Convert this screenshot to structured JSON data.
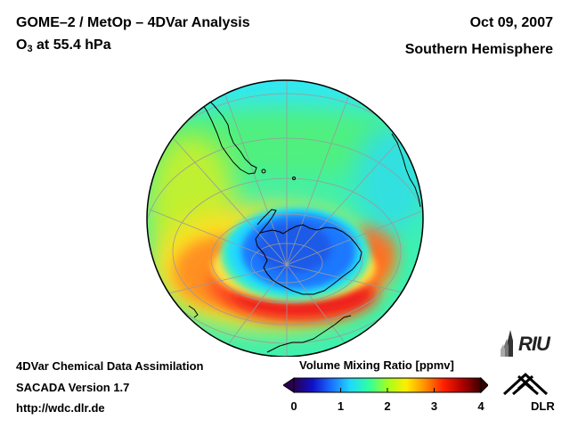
{
  "header": {
    "title": "GOME–2 / MetOp – 4DVar Analysis",
    "species_main": "O",
    "species_sub": "3",
    "species_rest": " at 55.4 hPa",
    "date": "Oct 09, 2007",
    "region": "Southern Hemisphere"
  },
  "footer": {
    "line1": "4DVar Chemical Data Assimilation",
    "line2": "SACADA Version 1.7",
    "line3": "http://wdc.dlr.de"
  },
  "colorbar": {
    "title": "Volume Mixing Ratio [ppmv]",
    "ticks": [
      "0",
      "1",
      "2",
      "3",
      "4"
    ],
    "min": 0,
    "max": 4,
    "colors": [
      "#2a0050",
      "#1010c8",
      "#1a70ff",
      "#20d8ff",
      "#30ffa0",
      "#a0ff20",
      "#ffee00",
      "#ff9000",
      "#ff2000",
      "#b00000",
      "#3a0000"
    ]
  },
  "logos": {
    "riu": "RIU",
    "dlr": "DLR"
  },
  "map": {
    "projection": "orthographic-south-polar",
    "field_palette": {
      "ozone_hole": "#1e6cff",
      "hole_core": "#1a50e0",
      "collar_low": "#20e0ff",
      "midlat": "#30f0a0",
      "yellow_ring": "#ffe000",
      "red_ring": "#f02020",
      "outer_green": "#60f060"
    },
    "coastline_color": "#000000",
    "graticule_color": "#9a9a9a"
  }
}
